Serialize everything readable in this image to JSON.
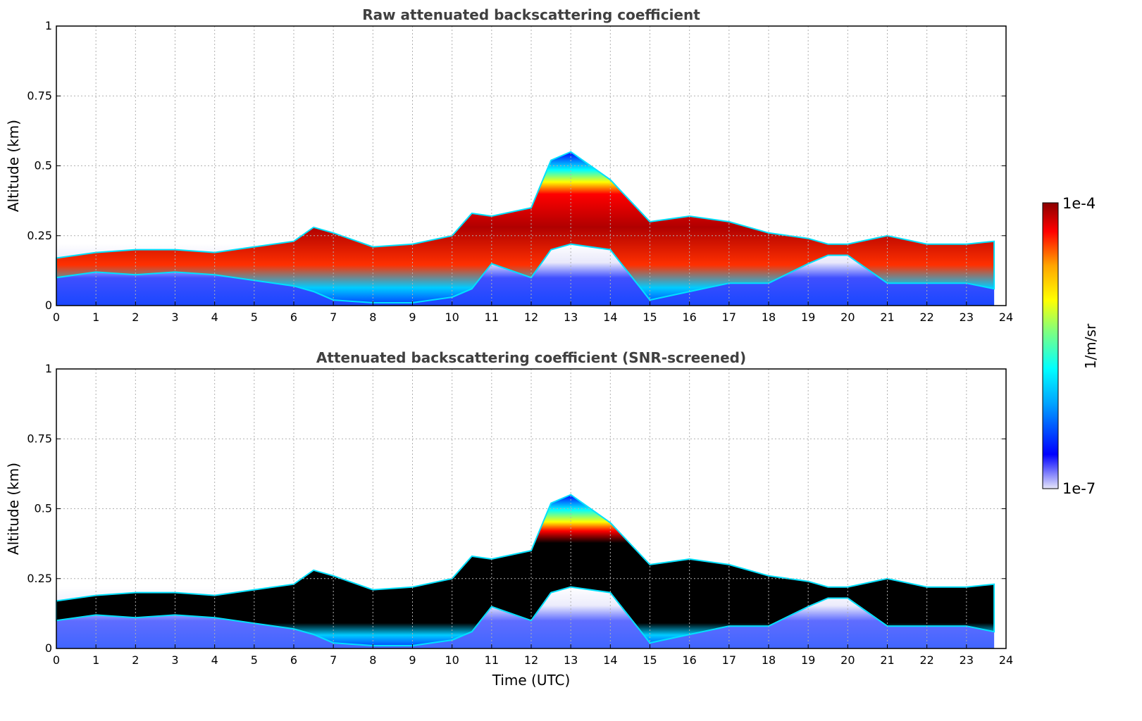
{
  "chart_data": [
    {
      "type": "heatmap",
      "title": "Raw attenuated backscattering coefficient",
      "xlabel": "",
      "ylabel": "Altitude (km)",
      "xlim": [
        0,
        24
      ],
      "ylim": [
        0,
        1
      ],
      "x_ticks": [
        "0",
        "1",
        "2",
        "3",
        "4",
        "5",
        "6",
        "7",
        "8",
        "9",
        "10",
        "11",
        "12",
        "13",
        "14",
        "15",
        "16",
        "17",
        "18",
        "19",
        "20",
        "21",
        "22",
        "23",
        "24"
      ],
      "y_ticks": [
        "0",
        "0.25",
        "0.5",
        "0.75",
        "1"
      ],
      "grid": true,
      "layer_profile": {
        "time_utc": [
          0,
          1,
          2,
          3,
          4,
          5,
          6,
          6.5,
          7,
          8,
          9,
          10,
          10.5,
          11,
          12,
          12.5,
          13,
          14,
          15,
          16,
          17,
          18,
          19,
          19.5,
          20,
          21,
          22,
          23,
          23.7
        ],
        "layer_top_km": [
          0.17,
          0.19,
          0.2,
          0.2,
          0.19,
          0.21,
          0.23,
          0.28,
          0.26,
          0.21,
          0.22,
          0.25,
          0.33,
          0.32,
          0.35,
          0.52,
          0.55,
          0.45,
          0.3,
          0.32,
          0.3,
          0.26,
          0.24,
          0.22,
          0.22,
          0.25,
          0.22,
          0.22,
          0.23
        ],
        "layer_base_km": [
          0.1,
          0.12,
          0.11,
          0.12,
          0.11,
          0.09,
          0.07,
          0.05,
          0.02,
          0.01,
          0.01,
          0.03,
          0.06,
          0.15,
          0.1,
          0.2,
          0.22,
          0.2,
          0.02,
          0.05,
          0.08,
          0.08,
          0.15,
          0.18,
          0.18,
          0.08,
          0.08,
          0.08,
          0.06
        ]
      }
    },
    {
      "type": "heatmap",
      "title": "Attenuated backscattering coefficient (SNR-screened)",
      "xlabel": "Time (UTC)",
      "ylabel": "Altitude (km)",
      "xlim": [
        0,
        24
      ],
      "ylim": [
        0,
        1
      ],
      "x_ticks": [
        "0",
        "1",
        "2",
        "3",
        "4",
        "5",
        "6",
        "7",
        "8",
        "9",
        "10",
        "11",
        "12",
        "13",
        "14",
        "15",
        "16",
        "17",
        "18",
        "19",
        "20",
        "21",
        "22",
        "23",
        "24"
      ],
      "y_ticks": [
        "0",
        "0.25",
        "0.5",
        "0.75",
        "1"
      ],
      "grid": true,
      "layer_profile": {
        "time_utc": [
          0,
          1,
          2,
          3,
          4,
          5,
          6,
          6.5,
          7,
          8,
          9,
          10,
          10.5,
          11,
          12,
          12.5,
          13,
          14,
          15,
          16,
          17,
          18,
          19,
          19.5,
          20,
          21,
          22,
          23,
          23.7
        ],
        "layer_top_km": [
          0.17,
          0.19,
          0.2,
          0.2,
          0.19,
          0.21,
          0.23,
          0.28,
          0.26,
          0.21,
          0.22,
          0.25,
          0.33,
          0.32,
          0.35,
          0.52,
          0.55,
          0.45,
          0.3,
          0.32,
          0.3,
          0.26,
          0.24,
          0.22,
          0.22,
          0.25,
          0.22,
          0.22,
          0.23
        ],
        "layer_base_km": [
          0.1,
          0.12,
          0.11,
          0.12,
          0.11,
          0.09,
          0.07,
          0.05,
          0.02,
          0.01,
          0.01,
          0.03,
          0.06,
          0.15,
          0.1,
          0.2,
          0.22,
          0.2,
          0.02,
          0.05,
          0.08,
          0.08,
          0.15,
          0.18,
          0.18,
          0.08,
          0.08,
          0.08,
          0.06
        ]
      }
    }
  ],
  "colorbar": {
    "label": "1/m/sr",
    "max_label": "1e-4",
    "min_label": "1e-7",
    "colors": [
      "#e6e6fa",
      "#0000ff",
      "#00a5ff",
      "#00ffff",
      "#7fff7f",
      "#ffff00",
      "#ffa500",
      "#ff0000",
      "#8b0000"
    ]
  }
}
